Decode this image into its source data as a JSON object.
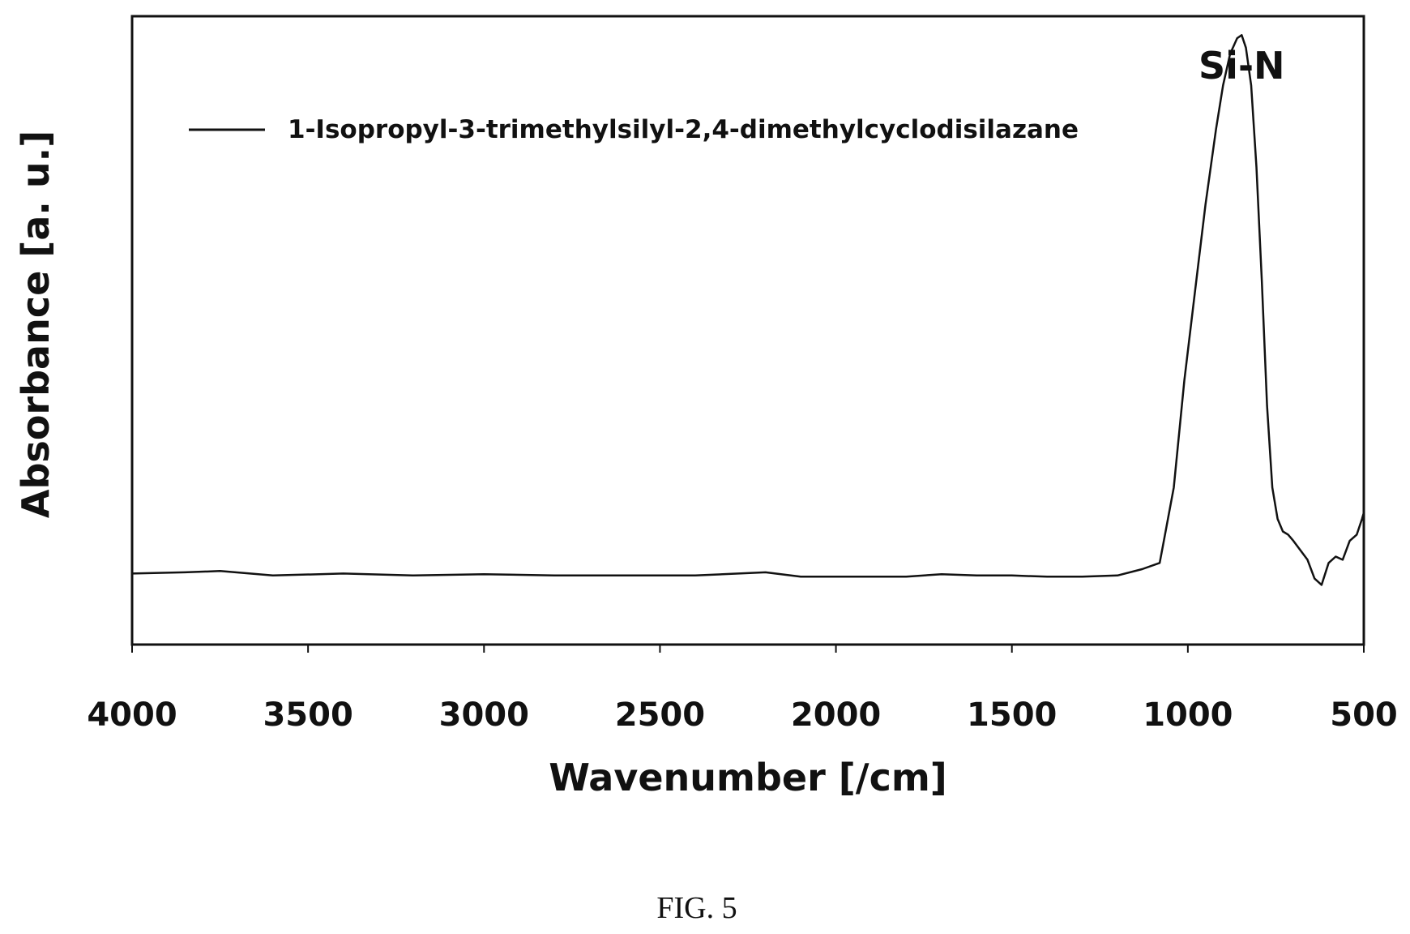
{
  "chart_data": {
    "type": "line",
    "xlabel": "Wavenumber [/cm]",
    "ylabel": "Absorbance [a. u.]",
    "xlim": [
      4000,
      500
    ],
    "x_reversed": true,
    "ylim": [
      0,
      1
    ],
    "y_ticks_shown": false,
    "grid": false,
    "legend_placement": "top-left",
    "x_ticks": [
      4000,
      3500,
      3000,
      2500,
      2000,
      1500,
      1000,
      500
    ],
    "series": [
      {
        "name": "1-Isopropyl-3-trimethylsilyl-2,4-dimethylcyclodisilazane",
        "color": "#111111",
        "points": [
          [
            4000,
            0.113
          ],
          [
            3850,
            0.115
          ],
          [
            3750,
            0.117
          ],
          [
            3600,
            0.11
          ],
          [
            3400,
            0.113
          ],
          [
            3200,
            0.11
          ],
          [
            3000,
            0.112
          ],
          [
            2800,
            0.11
          ],
          [
            2600,
            0.11
          ],
          [
            2400,
            0.11
          ],
          [
            2200,
            0.115
          ],
          [
            2100,
            0.108
          ],
          [
            2000,
            0.108
          ],
          [
            1800,
            0.108
          ],
          [
            1700,
            0.112
          ],
          [
            1600,
            0.11
          ],
          [
            1500,
            0.11
          ],
          [
            1400,
            0.108
          ],
          [
            1300,
            0.108
          ],
          [
            1200,
            0.11
          ],
          [
            1130,
            0.12
          ],
          [
            1080,
            0.13
          ],
          [
            1070,
            0.16
          ],
          [
            1040,
            0.25
          ],
          [
            1010,
            0.42
          ],
          [
            980,
            0.56
          ],
          [
            950,
            0.7
          ],
          [
            920,
            0.82
          ],
          [
            900,
            0.89
          ],
          [
            880,
            0.94
          ],
          [
            860,
            0.965
          ],
          [
            847,
            0.97
          ],
          [
            835,
            0.95
          ],
          [
            820,
            0.89
          ],
          [
            805,
            0.76
          ],
          [
            790,
            0.58
          ],
          [
            775,
            0.38
          ],
          [
            760,
            0.25
          ],
          [
            745,
            0.2
          ],
          [
            730,
            0.18
          ],
          [
            715,
            0.175
          ],
          [
            700,
            0.165
          ],
          [
            680,
            0.15
          ],
          [
            660,
            0.135
          ],
          [
            640,
            0.105
          ],
          [
            620,
            0.095
          ],
          [
            600,
            0.13
          ],
          [
            580,
            0.14
          ],
          [
            560,
            0.135
          ],
          [
            540,
            0.165
          ],
          [
            520,
            0.175
          ],
          [
            505,
            0.2
          ],
          [
            500,
            0.21
          ]
        ]
      }
    ],
    "annotations": [
      {
        "text": "Si-N",
        "x": 847
      }
    ]
  },
  "caption": "FIG. 5"
}
